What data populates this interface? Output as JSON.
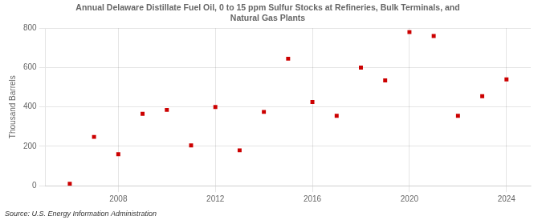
{
  "chart_data": {
    "type": "scatter",
    "title": "Annual Delaware Distillate Fuel Oil, 0 to 15 ppm Sulfur Stocks at Refineries, Bulk Terminals, and\nNatural Gas Plants",
    "ylabel": "Thousand Barrels",
    "annotations": [
      "Source: U.S. Energy Information Administration"
    ],
    "x": [
      2006,
      2007,
      2008,
      2009,
      2010,
      2011,
      2012,
      2013,
      2014,
      2015,
      2016,
      2017,
      2018,
      2019,
      2020,
      2021,
      2022,
      2023,
      2024
    ],
    "values": [
      10,
      248,
      160,
      365,
      385,
      205,
      400,
      180,
      375,
      645,
      425,
      355,
      600,
      535,
      780,
      760,
      355,
      455,
      540
    ],
    "color": "#cc0000",
    "marker": "square",
    "xlim": [
      2005,
      2025
    ],
    "xticks": [
      2008,
      2012,
      2016,
      2020,
      2024
    ],
    "ylim": [
      0,
      800
    ],
    "yticks": [
      0,
      200,
      400,
      600,
      800
    ],
    "grid": true
  }
}
